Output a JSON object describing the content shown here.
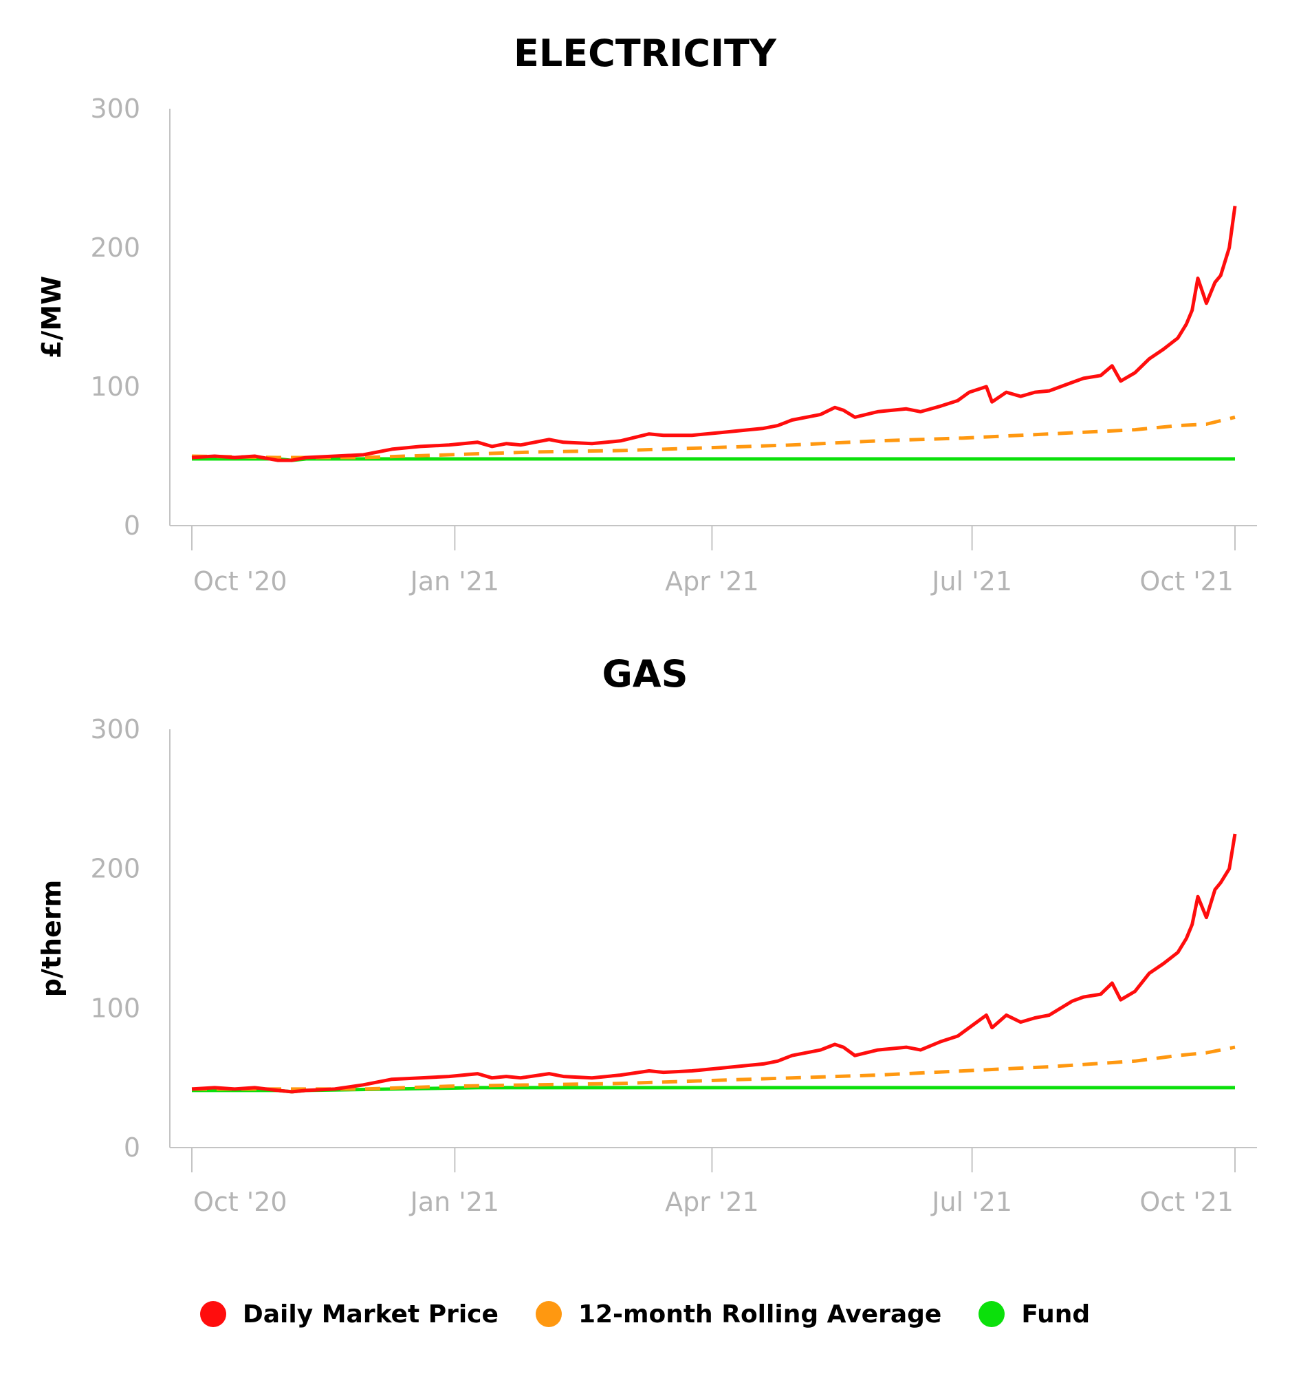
{
  "colors": {
    "market": "#ff0d0d",
    "rolling": "#ff9810",
    "fund": "#0be00b",
    "axis": "#c4c4c4",
    "tick": "#b4b4b4"
  },
  "legend": {
    "items": [
      {
        "label": "Daily Market Price",
        "color": "#ff0d0d"
      },
      {
        "label": "12-month Rolling Average",
        "color": "#ff9810"
      },
      {
        "label": "Fund",
        "color": "#0be00b"
      }
    ]
  },
  "chart_data": [
    {
      "type": "line",
      "title": "ELECTRICITY",
      "xlabel": "",
      "ylabel": "£/MW",
      "ylim": [
        0,
        300
      ],
      "yticks": [
        "0",
        "100",
        "200",
        "300"
      ],
      "xlim": [
        0,
        365
      ],
      "xticks": [
        {
          "label": "Oct '20",
          "x": 0
        },
        {
          "label": "Jan '21",
          "x": 92
        },
        {
          "label": "Apr '21",
          "x": 182
        },
        {
          "label": "Jul '21",
          "x": 273
        },
        {
          "label": "Oct '21",
          "x": 365
        }
      ],
      "series": [
        {
          "name": "Daily Market Price",
          "style": "solid",
          "x": [
            0,
            8,
            15,
            22,
            30,
            35,
            40,
            50,
            60,
            70,
            80,
            90,
            100,
            105,
            110,
            115,
            125,
            130,
            140,
            150,
            160,
            165,
            175,
            185,
            195,
            200,
            205,
            210,
            220,
            225,
            228,
            232,
            240,
            250,
            255,
            262,
            268,
            272,
            278,
            280,
            285,
            290,
            295,
            300,
            308,
            312,
            318,
            322,
            325,
            330,
            335,
            340,
            345,
            348,
            350,
            352,
            355,
            358,
            360,
            363,
            365
          ],
          "y": [
            49,
            50,
            49,
            50,
            47,
            47,
            49,
            50,
            51,
            55,
            57,
            58,
            60,
            57,
            59,
            58,
            62,
            60,
            59,
            61,
            66,
            65,
            65,
            67,
            69,
            70,
            72,
            76,
            80,
            85,
            83,
            78,
            82,
            84,
            82,
            86,
            90,
            96,
            100,
            89,
            96,
            93,
            96,
            97,
            103,
            106,
            108,
            115,
            104,
            110,
            120,
            127,
            135,
            145,
            155,
            178,
            160,
            175,
            180,
            200,
            230
          ]
        },
        {
          "name": "12-month Rolling Average",
          "style": "dashed",
          "x": [
            0,
            30,
            60,
            90,
            120,
            150,
            180,
            210,
            240,
            270,
            300,
            330,
            345,
            355,
            365
          ],
          "y": [
            50,
            49,
            49,
            51,
            53,
            54,
            56,
            58,
            61,
            63,
            66,
            69,
            72,
            73,
            78
          ]
        },
        {
          "name": "Fund",
          "style": "solid",
          "x": [
            0,
            30,
            35,
            40,
            100,
            200,
            300,
            365
          ],
          "y": [
            48,
            48,
            47,
            48,
            48,
            48,
            48,
            48
          ]
        }
      ]
    },
    {
      "type": "line",
      "title": "GAS",
      "xlabel": "",
      "ylabel": "p/therm",
      "ylim": [
        0,
        300
      ],
      "yticks": [
        "0",
        "100",
        "200",
        "300"
      ],
      "xlim": [
        0,
        365
      ],
      "xticks": [
        {
          "label": "Oct '20",
          "x": 0
        },
        {
          "label": "Jan '21",
          "x": 92
        },
        {
          "label": "Apr '21",
          "x": 182
        },
        {
          "label": "Jul '21",
          "x": 273
        },
        {
          "label": "Oct '21",
          "x": 365
        }
      ],
      "series": [
        {
          "name": "Daily Market Price",
          "style": "solid",
          "x": [
            0,
            8,
            15,
            22,
            30,
            35,
            40,
            50,
            60,
            70,
            80,
            90,
            100,
            105,
            110,
            115,
            125,
            130,
            140,
            150,
            160,
            165,
            175,
            185,
            195,
            200,
            205,
            210,
            220,
            225,
            228,
            232,
            240,
            250,
            255,
            262,
            268,
            272,
            278,
            280,
            285,
            290,
            295,
            300,
            308,
            312,
            318,
            322,
            325,
            330,
            335,
            340,
            345,
            348,
            350,
            352,
            355,
            358,
            360,
            363,
            365
          ],
          "y": [
            42,
            43,
            42,
            43,
            41,
            40,
            41,
            42,
            45,
            49,
            50,
            51,
            53,
            50,
            51,
            50,
            53,
            51,
            50,
            52,
            55,
            54,
            55,
            57,
            59,
            60,
            62,
            66,
            70,
            74,
            72,
            66,
            70,
            72,
            70,
            76,
            80,
            86,
            95,
            86,
            95,
            90,
            93,
            95,
            105,
            108,
            110,
            118,
            106,
            112,
            125,
            132,
            140,
            150,
            160,
            180,
            165,
            185,
            190,
            200,
            225
          ]
        },
        {
          "name": "12-month Rolling Average",
          "style": "dashed",
          "x": [
            0,
            30,
            60,
            90,
            120,
            150,
            180,
            210,
            240,
            270,
            300,
            330,
            345,
            355,
            365
          ],
          "y": [
            42,
            42,
            42,
            44,
            45,
            46,
            48,
            50,
            52,
            55,
            58,
            62,
            66,
            68,
            72
          ]
        },
        {
          "name": "Fund",
          "style": "solid",
          "x": [
            0,
            30,
            35,
            40,
            100,
            200,
            300,
            365
          ],
          "y": [
            41,
            41,
            40,
            41,
            43,
            43,
            43,
            43
          ]
        }
      ]
    }
  ]
}
